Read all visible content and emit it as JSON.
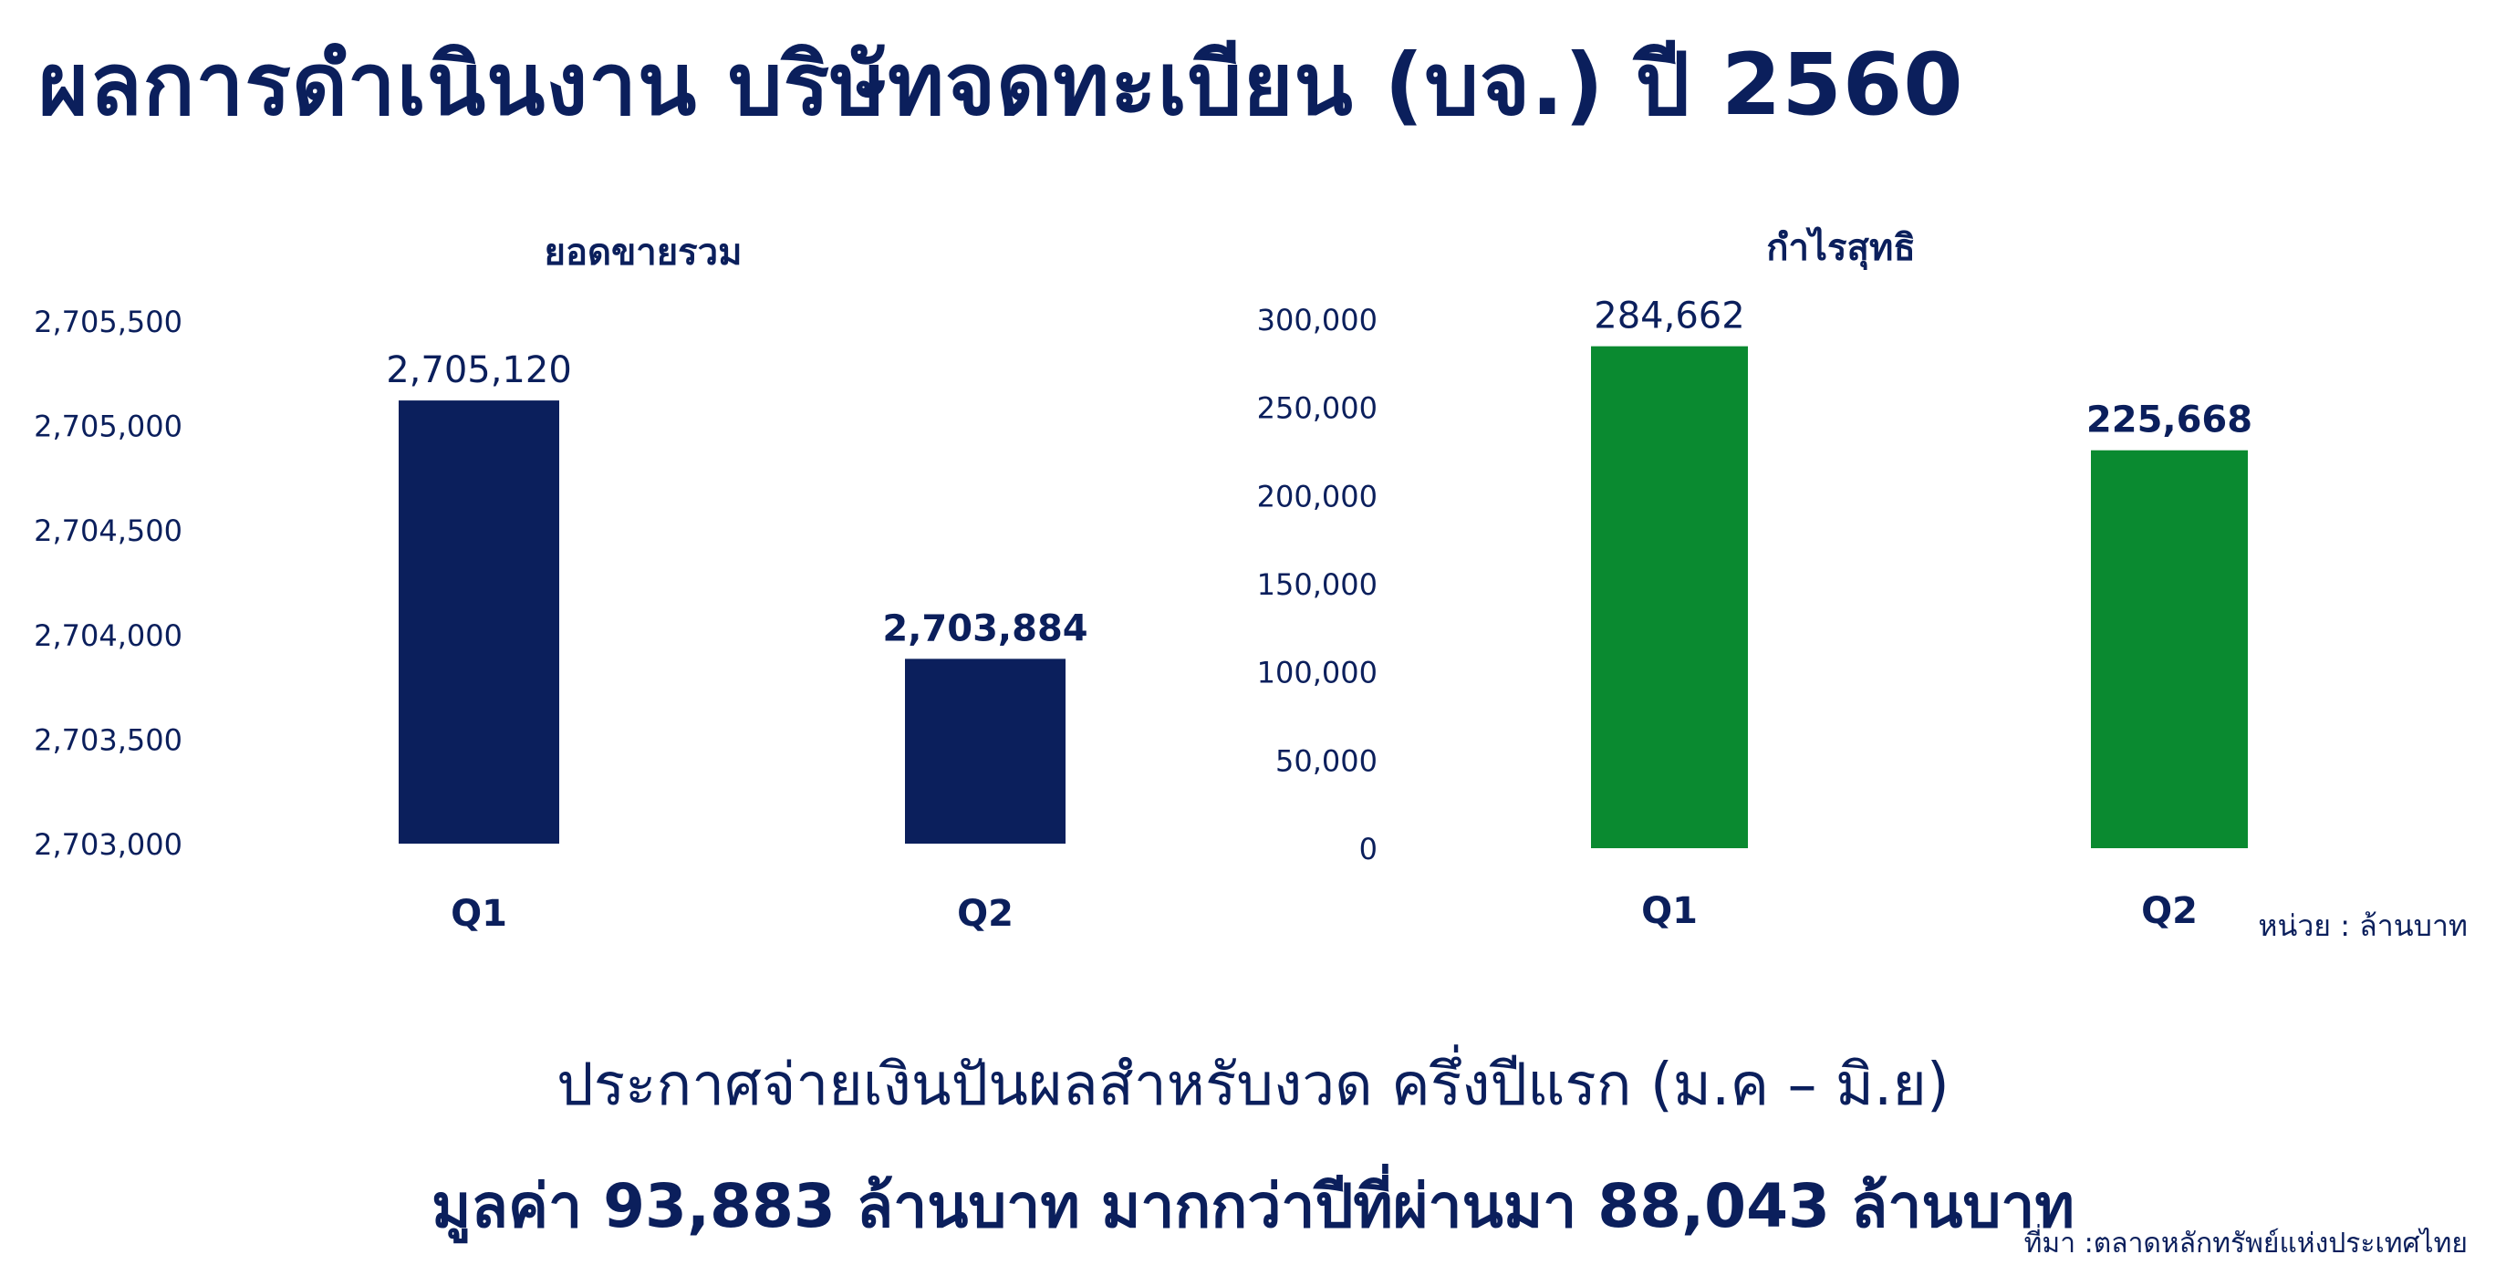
{
  "title": "ผลการดำเนินงาน บริษัทจดทะเบียน (บจ.) ปี 2560",
  "unit_note": "หน่วย : ล้านบาท",
  "announcement": {
    "line1": "ประกาศจ่ายเงินปันผลสำหรับงวด ครึ่งปีแรก (ม.ค – มิ.ย)",
    "line2": "มูลค่า 93,883 ล้านบาท มากกว่าปีที่ผ่านมา 88,043 ล้านบาท"
  },
  "source": "ที่มา :ตลาดหลักทรัพย์แห่งประเทศไทย",
  "colors": {
    "navy": "#0b1f5c",
    "green": "#0a8a30"
  },
  "chart_data": [
    {
      "type": "bar",
      "title": "ยอดขายรวม",
      "categories": [
        "Q1",
        "Q2"
      ],
      "values": [
        2705120,
        2703884
      ],
      "value_labels": [
        "2,705,120",
        "2,703,884"
      ],
      "ylim": [
        2703000,
        2705500
      ],
      "yticks": [
        2703000,
        2703500,
        2704000,
        2704500,
        2705000,
        2705500
      ],
      "ytick_labels": [
        "2,703,000",
        "2,703,500",
        "2,704,000",
        "2,704,500",
        "2,705,000",
        "2,705,500"
      ],
      "color": "#0b1f5c",
      "grid": false
    },
    {
      "type": "bar",
      "title": "กำไรสุทธิ",
      "categories": [
        "Q1",
        "Q2"
      ],
      "values": [
        284662,
        225668
      ],
      "value_labels": [
        "284,662",
        "225,668"
      ],
      "ylim": [
        0,
        300000
      ],
      "yticks": [
        0,
        50000,
        100000,
        150000,
        200000,
        250000,
        300000
      ],
      "ytick_labels": [
        "0",
        "50,000",
        "100,000",
        "150,000",
        "200,000",
        "250,000",
        "300,000"
      ],
      "color": "#0a8a30",
      "grid": false
    }
  ]
}
